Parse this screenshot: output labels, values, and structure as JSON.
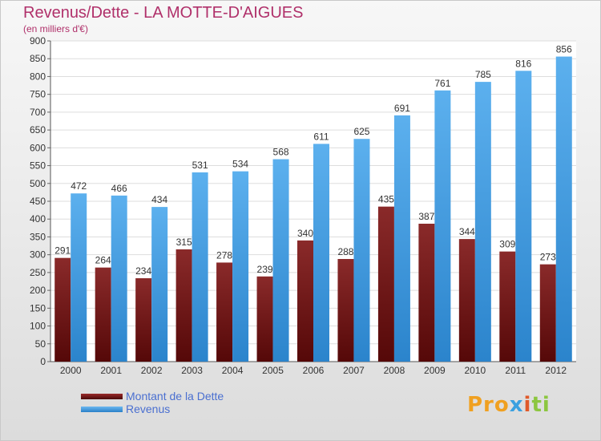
{
  "chart_data": {
    "type": "bar",
    "title": "Revenus/Dette - LA MOTTE-D'AIGUES",
    "subtitle": "(en milliers d'€)",
    "categories": [
      "2000",
      "2001",
      "2002",
      "2003",
      "2004",
      "2005",
      "2006",
      "2007",
      "2008",
      "2009",
      "2010",
      "2011",
      "2012"
    ],
    "series": [
      {
        "name": "Montant de la Dette",
        "color": "#7a1a1a",
        "values": [
          291,
          264,
          234,
          315,
          278,
          239,
          340,
          288,
          435,
          387,
          344,
          309,
          273
        ]
      },
      {
        "name": "Revenus",
        "color": "#4aa3e8",
        "values": [
          472,
          466,
          434,
          531,
          534,
          568,
          611,
          625,
          691,
          761,
          785,
          816,
          856
        ]
      }
    ],
    "ylim": [
      0,
      900
    ],
    "ytick_step": 50,
    "grid": true,
    "legend_position": "bottom-left"
  },
  "legend": {
    "items": [
      {
        "label": "Montant de la Dette",
        "color": "#6b1212"
      },
      {
        "label": "Revenus",
        "color": "#4aa3e8"
      }
    ]
  },
  "logo": {
    "p1": "Pro",
    "p2": "x",
    "p3": "i",
    "p4": "ti"
  }
}
